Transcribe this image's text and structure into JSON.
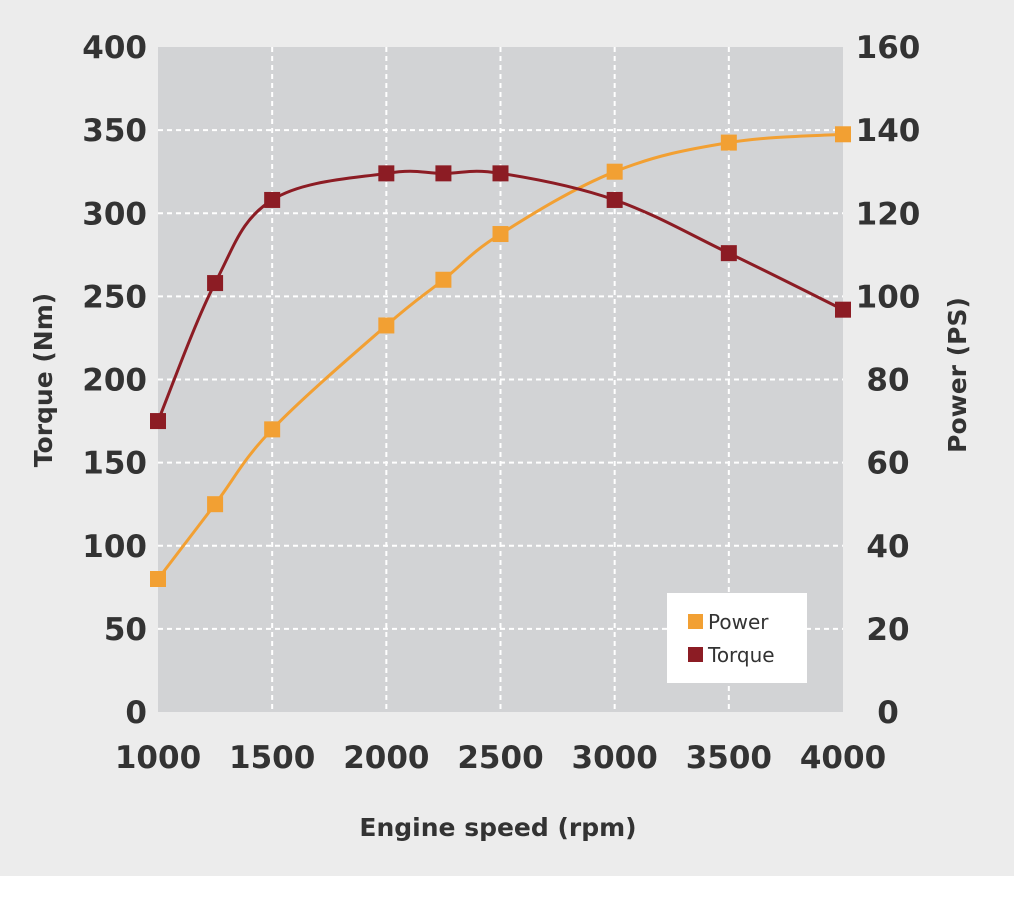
{
  "chart_data": {
    "type": "line",
    "xlabel": "Engine speed (rpm)",
    "ylabel_left": "Torque (Nm)",
    "ylabel_right": "Power (PS)",
    "x_ticks": [
      "1000",
      "1500",
      "2000",
      "2500",
      "3000",
      "3500",
      "4000"
    ],
    "y_left_ticks": [
      "0",
      "50",
      "100",
      "150",
      "200",
      "250",
      "300",
      "350",
      "400"
    ],
    "y_right_ticks": [
      "0",
      "20",
      "40",
      "60",
      "80",
      "100",
      "120",
      "140",
      "160"
    ],
    "xlim": [
      1000,
      4000
    ],
    "ylim_left": [
      0,
      400
    ],
    "ylim_right": [
      0,
      160
    ],
    "grid": true,
    "legend_position": "bottom-right",
    "series": [
      {
        "name": "Power",
        "axis": "right",
        "color": "#f2a033",
        "points": [
          [
            1000,
            32
          ],
          [
            1250,
            50
          ],
          [
            1500,
            68
          ],
          [
            2000,
            93
          ],
          [
            2250,
            104
          ],
          [
            2500,
            115
          ],
          [
            3000,
            130
          ],
          [
            3500,
            137
          ],
          [
            4000,
            139
          ]
        ]
      },
      {
        "name": "Torque",
        "axis": "left",
        "color": "#8c1c24",
        "points": [
          [
            1000,
            175
          ],
          [
            1250,
            258
          ],
          [
            1500,
            308
          ],
          [
            2000,
            324
          ],
          [
            2250,
            324
          ],
          [
            2500,
            324
          ],
          [
            3000,
            308
          ],
          [
            3500,
            276
          ],
          [
            4000,
            242
          ]
        ]
      }
    ]
  }
}
